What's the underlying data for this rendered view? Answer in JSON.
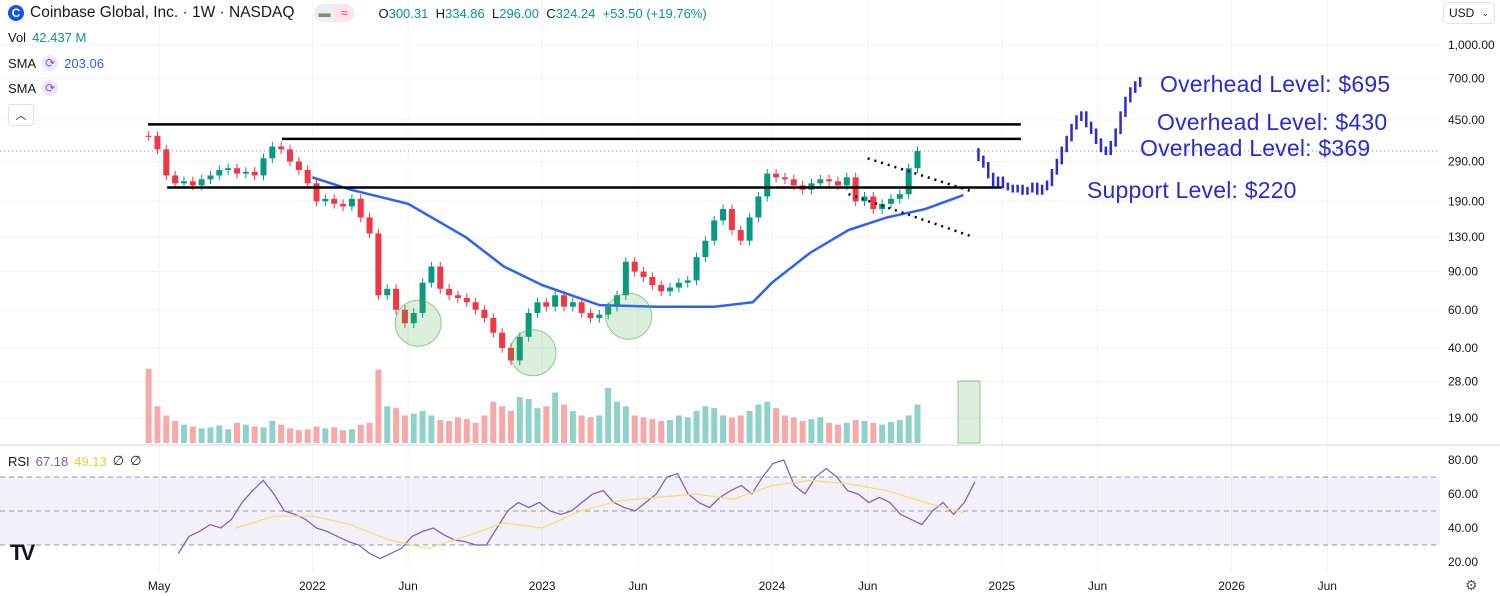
{
  "header": {
    "logo_letter": "C",
    "title": "Coinbase Global, Inc. · 1W · NASDAQ",
    "open_label": "O",
    "open": "300.31",
    "high_label": "H",
    "high": "334.86",
    "low_label": "L",
    "low": "296.00",
    "close_label": "C",
    "close": "324.24",
    "change": "+53.50 (+19.76%)",
    "vol_label": "Vol",
    "vol_value": "42.437 M",
    "sma1_label": "SMA",
    "sma1_value": "203.06",
    "sma2_label": "SMA",
    "collapse_icon": "chevron-up",
    "currency": "USD",
    "rsi_label": "RSI",
    "rsi_value": "67.18",
    "rsi_ma_value": "49.13",
    "rsi_extra1": "∅",
    "rsi_extra2": "∅"
  },
  "chart_data": {
    "type": "candlestick",
    "scale": "log",
    "price_ticks": [
      "1,000.00",
      "700.00",
      "450.00",
      "290.00",
      "190.00",
      "130.00",
      "90.00",
      "60.00",
      "40.00",
      "28.00",
      "19.00"
    ],
    "price_tick_values": [
      1000,
      700,
      450,
      290,
      190,
      130,
      90,
      60,
      40,
      28,
      19
    ],
    "rsi_ticks": [
      "80.00",
      "60.00",
      "40.00",
      "20.00"
    ],
    "rsi_tick_values": [
      80,
      60,
      40,
      20
    ],
    "x_ticks": [
      {
        "label": "May",
        "date": "2021-05"
      },
      {
        "label": "2022",
        "date": "2022-01"
      },
      {
        "label": "Jun",
        "date": "2022-06"
      },
      {
        "label": "2023",
        "date": "2023-01"
      },
      {
        "label": "Jun",
        "date": "2023-06"
      },
      {
        "label": "2024",
        "date": "2024-01"
      },
      {
        "label": "Jun",
        "date": "2024-06"
      },
      {
        "label": "2025",
        "date": "2025-01"
      },
      {
        "label": "Jun",
        "date": "2025-06"
      },
      {
        "label": "2026",
        "date": "2026-01"
      },
      {
        "label": "Jun",
        "date": "2026-06"
      }
    ],
    "colors": {
      "up": "#089981",
      "down": "#f23645",
      "vol_up": "#8fd3c8",
      "vol_down": "#f7a9a7",
      "sma": "#2962ff",
      "rsi": "#7e57c2",
      "rsi_ma": "#f5e06b",
      "annotation": "#2a2ad6",
      "projection": "#2a2ad6"
    },
    "candles": {
      "start": "2021-04",
      "interval": "2W",
      "closes": [
        380,
        330,
        250,
        230,
        235,
        225,
        240,
        250,
        265,
        270,
        255,
        260,
        250,
        300,
        340,
        330,
        290,
        265,
        230,
        190,
        195,
        185,
        180,
        195,
        160,
        135,
        70,
        75,
        60,
        52,
        58,
        80,
        95,
        75,
        70,
        68,
        65,
        60,
        55,
        47,
        40,
        35,
        45,
        58,
        65,
        62,
        70,
        62,
        65,
        58,
        55,
        57,
        62,
        70,
        100,
        90,
        85,
        78,
        73,
        76,
        80,
        82,
        105,
        125,
        155,
        175,
        140,
        125,
        160,
        200,
        255,
        245,
        240,
        225,
        215,
        230,
        240,
        235,
        225,
        245,
        190,
        200,
        175,
        185,
        195,
        205,
        270,
        324
      ],
      "first_open": 381
    },
    "volume_millions": [
      81,
      40,
      30,
      24,
      20,
      18,
      16,
      17,
      19,
      15,
      22,
      20,
      18,
      17,
      24,
      20,
      16,
      14,
      15,
      18,
      16,
      17,
      14,
      15,
      20,
      22,
      80,
      40,
      38,
      30,
      32,
      35,
      30,
      25,
      24,
      28,
      26,
      22,
      30,
      45,
      40,
      35,
      50,
      48,
      38,
      40,
      55,
      42,
      35,
      30,
      28,
      30,
      60,
      45,
      40,
      30,
      28,
      26,
      24,
      25,
      30,
      28,
      35,
      40,
      38,
      30,
      28,
      30,
      35,
      42,
      45,
      38,
      30,
      28,
      24,
      26,
      28,
      22,
      20,
      22,
      25,
      24,
      22,
      20,
      23,
      25,
      30,
      42
    ],
    "sma": [
      [
        "2022-01",
        245
      ],
      [
        "2022-03",
        215
      ],
      [
        "2022-06",
        185
      ],
      [
        "2022-09",
        130
      ],
      [
        "2022-11",
        95
      ],
      [
        "2023-01",
        78
      ],
      [
        "2023-04",
        63
      ],
      [
        "2023-07",
        62
      ],
      [
        "2023-10",
        62
      ],
      [
        "2023-12",
        65
      ],
      [
        "2024-01",
        80
      ],
      [
        "2024-03",
        110
      ],
      [
        "2024-05",
        140
      ],
      [
        "2024-07",
        160
      ],
      [
        "2024-09",
        175
      ],
      [
        "2024-11",
        203
      ]
    ],
    "rsi": {
      "start": "2021-06",
      "values": [
        25,
        35,
        38,
        42,
        40,
        45,
        55,
        62,
        68,
        60,
        50,
        48,
        45,
        40,
        38,
        35,
        32,
        30,
        25,
        22,
        25,
        28,
        35,
        38,
        40,
        36,
        33,
        32,
        30,
        30,
        40,
        50,
        55,
        52,
        55,
        50,
        48,
        50,
        55,
        60,
        62,
        55,
        52,
        50,
        55,
        60,
        70,
        72,
        60,
        55,
        52,
        58,
        62,
        65,
        60,
        70,
        78,
        80,
        65,
        60,
        70,
        75,
        70,
        62,
        60,
        55,
        58,
        55,
        48,
        45,
        42,
        50,
        55,
        48,
        55,
        67.18
      ],
      "ma": [
        [
          "2021-09",
          40
        ],
        [
          "2021-11",
          47
        ],
        [
          "2022-01",
          47
        ],
        [
          "2022-03",
          42
        ],
        [
          "2022-05",
          33
        ],
        [
          "2022-07",
          28
        ],
        [
          "2022-09",
          35
        ],
        [
          "2022-11",
          43
        ],
        [
          "2023-01",
          40
        ],
        [
          "2023-03",
          50
        ],
        [
          "2023-05",
          56
        ],
        [
          "2023-07",
          58
        ],
        [
          "2023-09",
          60
        ],
        [
          "2023-11",
          57
        ],
        [
          "2024-01",
          65
        ],
        [
          "2024-03",
          68
        ],
        [
          "2024-05",
          66
        ],
        [
          "2024-07",
          62
        ],
        [
          "2024-09",
          55
        ],
        [
          "2024-11",
          49.13
        ]
      ],
      "bands": [
        70,
        50,
        30
      ]
    },
    "projection": {
      "start": "2024-11",
      "interval": "1W",
      "values": [
        300,
        280,
        250,
        230,
        240,
        225,
        220,
        215,
        220,
        210,
        215,
        225,
        210,
        220,
        230,
        260,
        290,
        330,
        370,
        420,
        460,
        480,
        430,
        400,
        360,
        330,
        320,
        350,
        400,
        480,
        560,
        620,
        660,
        690
      ]
    },
    "levels": [
      {
        "label": "Overhead Level: $695",
        "price": 695
      },
      {
        "label": "Overhead Level: $430",
        "price": 430,
        "from": "2021-04",
        "to": "2025-02"
      },
      {
        "label": "Overhead Level: $369",
        "price": 369,
        "from": "2021-11",
        "to": "2025-02"
      },
      {
        "label": "Support Level: $220",
        "price": 220,
        "from": "2021-05",
        "to": "2025-01"
      }
    ],
    "current_price": 324.24,
    "wedge_lines": [
      [
        [
          "2024-06",
          300
        ],
        [
          "2024-11",
          210
        ]
      ],
      [
        [
          "2024-05",
          205
        ],
        [
          "2024-11",
          130
        ]
      ]
    ],
    "highlight_circles": [
      {
        "date": "2022-06",
        "price": 52
      },
      {
        "date": "2022-12",
        "price": 38
      },
      {
        "date": "2023-05",
        "price": 56
      }
    ]
  }
}
